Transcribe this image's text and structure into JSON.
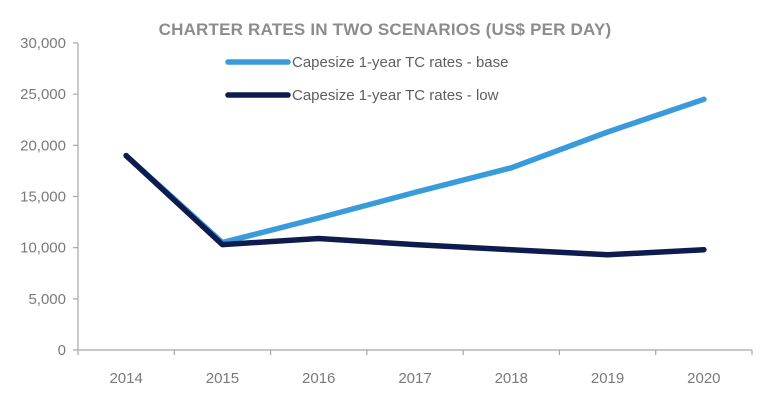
{
  "chart_data": {
    "type": "line",
    "title": "CHARTER RATES IN TWO SCENARIOS (US$ PER DAY)",
    "xlabel": "",
    "ylabel": "",
    "categories": [
      "2014",
      "2015",
      "2016",
      "2017",
      "2018",
      "2019",
      "2020"
    ],
    "ylim": [
      0,
      30000
    ],
    "yticks": [
      0,
      5000,
      10000,
      15000,
      20000,
      25000,
      30000
    ],
    "ytick_labels": [
      "0",
      "5,000",
      "10,000",
      "15,000",
      "20,000",
      "25,000",
      "30,000"
    ],
    "grid": false,
    "legend_position": "top-center",
    "series": [
      {
        "name": "Capesize 1-year TC rates - base",
        "color": "#3a9bdc",
        "values": [
          19000,
          10500,
          12900,
          15400,
          17800,
          21300,
          24500
        ]
      },
      {
        "name": "Capesize 1-year TC rates - low",
        "color": "#0d1b4f",
        "values": [
          19000,
          10300,
          10900,
          10300,
          9800,
          9300,
          9800
        ]
      }
    ]
  }
}
